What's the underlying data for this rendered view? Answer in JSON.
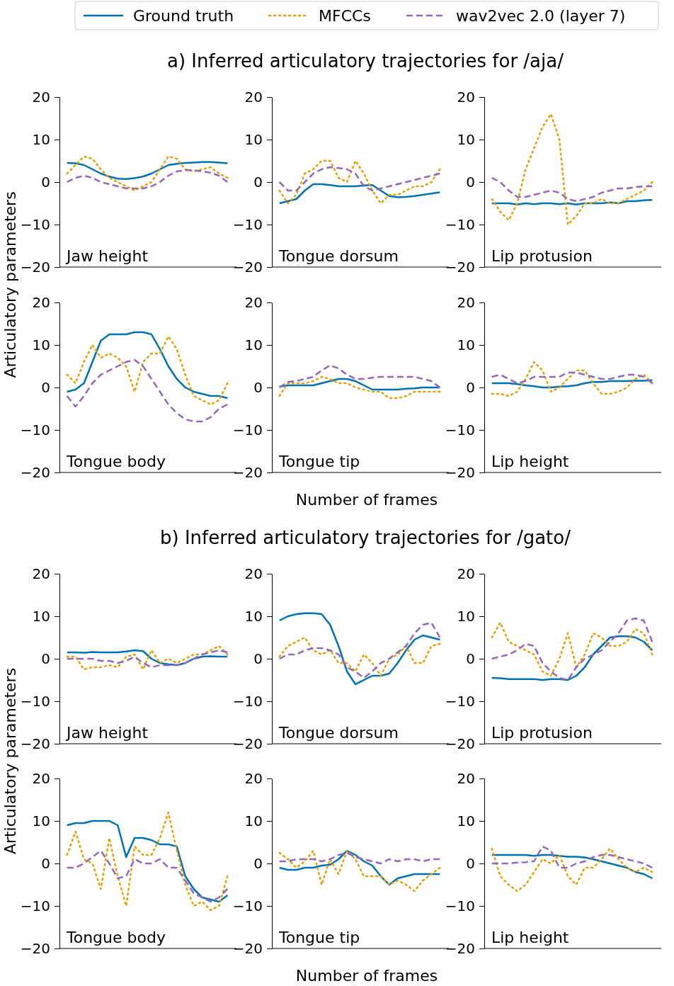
{
  "chart_data": [
    {
      "type": "line",
      "title": "a) Inferred articulatory trajectories for /aja/",
      "ylabel": "Articulatory parameters",
      "annotations": [
        "Jaw height"
      ],
      "legend": "top",
      "tick_labels": "y",
      "ylim": [
        -20,
        20
      ],
      "yticks": [
        -20,
        -10,
        0,
        10,
        20
      ],
      "categories": [
        null,
        null,
        null,
        null,
        null,
        null,
        null,
        null,
        null,
        null,
        null,
        null,
        null,
        null,
        null,
        null,
        null,
        null,
        null,
        null
      ],
      "series": [
        {
          "name": "Ground truth",
          "color": "#0072b2",
          "line_style": "solid",
          "values": [
            4.5,
            4.4,
            4,
            3,
            2,
            1.3,
            0.8,
            0.7,
            0.9,
            1.3,
            2,
            3,
            4,
            4.3,
            4.5,
            4.6,
            4.7,
            4.7,
            4.6,
            4.4
          ]
        },
        {
          "name": "MFCCs",
          "color": "#e69f00",
          "line_style": "dotted",
          "values": [
            2,
            4,
            6,
            5.5,
            3,
            1,
            0,
            -1,
            -2,
            -1,
            0,
            3,
            6,
            5.5,
            3,
            2.5,
            3,
            3.5,
            2,
            1
          ]
        },
        {
          "name": "wav2vec 2.0 (layer 7)",
          "color": "#9467bd",
          "line_style": "dashed",
          "values": [
            0,
            1,
            1.5,
            1,
            0,
            -0.5,
            -1,
            -1.5,
            -1.5,
            -1.5,
            -1,
            0,
            1.5,
            2.5,
            2.8,
            2.8,
            2.5,
            2.2,
            1.5,
            0
          ]
        }
      ]
    },
    {
      "type": "line",
      "annotations": [
        "Tongue dorsum"
      ],
      "tick_labels": "y",
      "ylim": [
        -20,
        20
      ],
      "yticks": [
        -20,
        -10,
        0,
        10,
        20
      ],
      "categories": [
        null,
        null,
        null,
        null,
        null,
        null,
        null,
        null,
        null,
        null,
        null,
        null,
        null,
        null,
        null,
        null,
        null,
        null,
        null,
        null
      ],
      "series": [
        {
          "color": "#0072b2",
          "line_style": "solid",
          "values": [
            -5,
            -4.5,
            -4,
            -2,
            -0.5,
            -0.5,
            -0.7,
            -1,
            -1,
            -1,
            -0.8,
            -0.7,
            -2,
            -3.3,
            -3.6,
            -3.5,
            -3.3,
            -3,
            -2.7,
            -2.4
          ]
        },
        {
          "color": "#e69f00",
          "line_style": "dotted",
          "values": [
            -2,
            -5,
            -3,
            2,
            3,
            5,
            5,
            1,
            0,
            5,
            2,
            -2,
            -5,
            -3,
            -3,
            -2,
            -1,
            -1,
            0,
            3
          ]
        },
        {
          "color": "#9467bd",
          "line_style": "dashed",
          "values": [
            0,
            -2,
            -2,
            0,
            2,
            3,
            3.5,
            3.3,
            3,
            2,
            -1,
            -2,
            -1.5,
            -1,
            -0.5,
            0,
            0.5,
            1,
            1.5,
            2
          ]
        }
      ]
    },
    {
      "type": "line",
      "annotations": [
        "Lip protusion"
      ],
      "tick_labels": "y",
      "ylim": [
        -20,
        20
      ],
      "yticks": [
        -20,
        -10,
        0,
        10,
        20
      ],
      "categories": [
        null,
        null,
        null,
        null,
        null,
        null,
        null,
        null,
        null,
        null,
        null,
        null,
        null,
        null,
        null,
        null,
        null,
        null,
        null,
        null
      ],
      "series": [
        {
          "color": "#0072b2",
          "line_style": "solid",
          "values": [
            -5,
            -5,
            -5,
            -5.3,
            -5,
            -5.2,
            -5,
            -5,
            -5.2,
            -5,
            -5.3,
            -5,
            -5,
            -5,
            -4.8,
            -5,
            -4.5,
            -4.5,
            -4.3,
            -4.2
          ]
        },
        {
          "color": "#e69f00",
          "line_style": "dotted",
          "values": [
            -4,
            -7,
            -9,
            -5,
            3,
            8,
            13,
            16,
            10,
            -10,
            -8,
            -5,
            -5,
            -4,
            -5,
            -5,
            -4,
            -3,
            -2,
            0
          ]
        },
        {
          "color": "#9467bd",
          "line_style": "dashed",
          "values": [
            1,
            0,
            -2,
            -3.5,
            -3.5,
            -3,
            -2.5,
            -2,
            -2.5,
            -4,
            -4.5,
            -4,
            -3.5,
            -2.5,
            -2,
            -1.5,
            -1.5,
            -1.2,
            -1,
            -1
          ]
        }
      ]
    },
    {
      "type": "line",
      "annotations": [
        "Tongue body"
      ],
      "tick_labels": "y",
      "ylim": [
        -20,
        20
      ],
      "yticks": [
        -20,
        -10,
        0,
        10,
        20
      ],
      "categories": [
        null,
        null,
        null,
        null,
        null,
        null,
        null,
        null,
        null,
        null,
        null,
        null,
        null,
        null,
        null,
        null,
        null,
        null,
        null,
        null
      ],
      "series": [
        {
          "color": "#0072b2",
          "line_style": "solid",
          "values": [
            -1,
            -0.5,
            1,
            6,
            11,
            12.5,
            12.5,
            12.5,
            13,
            13,
            12.5,
            9,
            5,
            2,
            0,
            -1,
            -1.5,
            -2,
            -2,
            -2.5
          ]
        },
        {
          "color": "#e69f00",
          "line_style": "dotted",
          "values": [
            3,
            1,
            6,
            10,
            7,
            8,
            7,
            5,
            -1,
            6,
            8,
            8,
            12,
            9,
            3,
            -2,
            -3,
            -4,
            -3,
            1
          ]
        },
        {
          "color": "#9467bd",
          "line_style": "dashed",
          "values": [
            -2,
            -4.5,
            -2,
            1,
            3,
            4,
            5,
            6,
            6.5,
            5,
            2,
            -1,
            -4,
            -6,
            -7.5,
            -8,
            -8,
            -7,
            -5,
            -4
          ]
        }
      ]
    },
    {
      "type": "line",
      "xlabel": "Number of frames",
      "annotations": [
        "Tongue tip"
      ],
      "tick_labels": "y",
      "ylim": [
        -20,
        20
      ],
      "yticks": [
        -20,
        -10,
        0,
        10,
        20
      ],
      "categories": [
        null,
        null,
        null,
        null,
        null,
        null,
        null,
        null,
        null,
        null,
        null,
        null,
        null,
        null,
        null,
        null,
        null,
        null,
        null,
        null
      ],
      "series": [
        {
          "color": "#0072b2",
          "line_style": "solid",
          "values": [
            0.2,
            0.5,
            0.5,
            0.5,
            0.5,
            1,
            1.5,
            2,
            2,
            1.5,
            0.5,
            -0.5,
            -0.5,
            -0.5,
            -0.5,
            -0.3,
            -0.2,
            0,
            0,
            0
          ]
        },
        {
          "color": "#e69f00",
          "line_style": "dotted",
          "values": [
            -2,
            1,
            1,
            1,
            1.5,
            2.5,
            2,
            1,
            1,
            0,
            -0.5,
            -1,
            -1,
            -2.5,
            -2.5,
            -2,
            -1,
            -1,
            -1,
            -1
          ]
        },
        {
          "color": "#9467bd",
          "line_style": "dashed",
          "values": [
            0,
            1.3,
            1.5,
            2,
            2.5,
            4,
            5.2,
            4.5,
            3,
            2,
            2,
            2.3,
            2.5,
            2.5,
            2.5,
            2.5,
            2.5,
            2,
            1.5,
            0
          ]
        }
      ]
    },
    {
      "type": "line",
      "annotations": [
        "Lip height"
      ],
      "tick_labels": "y",
      "ylim": [
        -20,
        20
      ],
      "yticks": [
        -20,
        -10,
        0,
        10,
        20
      ],
      "categories": [
        null,
        null,
        null,
        null,
        null,
        null,
        null,
        null,
        null,
        null,
        null,
        null,
        null,
        null,
        null,
        null,
        null,
        null,
        null,
        null
      ],
      "series": [
        {
          "color": "#0072b2",
          "line_style": "solid",
          "values": [
            1,
            1,
            1,
            0.8,
            0.5,
            0.3,
            0,
            0,
            0.2,
            0.3,
            0.5,
            1,
            1.3,
            1.3,
            1.5,
            1.5,
            1.5,
            1.6,
            1.6,
            1.7
          ]
        },
        {
          "color": "#e69f00",
          "line_style": "dotted",
          "values": [
            -1.5,
            -1.5,
            -2,
            -1,
            2,
            6,
            4,
            -1,
            0,
            2,
            4,
            4,
            1,
            -1.5,
            -1.5,
            -1,
            0,
            2,
            3,
            1
          ]
        },
        {
          "color": "#9467bd",
          "line_style": "dashed",
          "values": [
            2.5,
            3,
            2,
            1,
            1.5,
            2.5,
            2.5,
            2.5,
            2.5,
            3.5,
            3.5,
            3,
            2.5,
            2,
            2,
            2.5,
            3,
            3,
            2.5,
            1
          ]
        }
      ]
    },
    {
      "type": "line",
      "title": "b) Inferred articulatory trajectories for /gato/",
      "ylabel": "Articulatory parameters",
      "annotations": [
        "Jaw height"
      ],
      "tick_labels": "y",
      "ylim": [
        -20,
        20
      ],
      "yticks": [
        -20,
        -10,
        0,
        10,
        20
      ],
      "categories": [
        null,
        null,
        null,
        null,
        null,
        null,
        null,
        null,
        null,
        null,
        null,
        null,
        null,
        null,
        null,
        null,
        null,
        null,
        null,
        null
      ],
      "series": [
        {
          "color": "#0072b2",
          "line_style": "solid",
          "values": [
            1.5,
            1.5,
            1.4,
            1.6,
            1.5,
            1.5,
            1.5,
            1.7,
            2,
            1.8,
            0,
            -1,
            -1.3,
            -1.5,
            -1,
            0,
            0.5,
            0.6,
            0.5,
            0.5
          ]
        },
        {
          "color": "#e69f00",
          "line_style": "dotted",
          "values": [
            0.5,
            0.5,
            -2.5,
            -2,
            -2,
            -1.5,
            -2,
            0.5,
            1,
            -2.5,
            2,
            -1,
            0,
            -1,
            0,
            1,
            1,
            2,
            3,
            1
          ]
        },
        {
          "color": "#9467bd",
          "line_style": "dashed",
          "values": [
            0,
            0,
            0,
            0,
            -0.5,
            -0.5,
            -1,
            -0.5,
            0.5,
            -1,
            -2,
            -1.5,
            -1.5,
            -1.5,
            -1,
            0,
            1,
            1.5,
            2,
            1.5
          ]
        }
      ]
    },
    {
      "type": "line",
      "annotations": [
        "Tongue dorsum"
      ],
      "tick_labels": "y",
      "ylim": [
        -20,
        20
      ],
      "yticks": [
        -20,
        -10,
        0,
        10,
        20
      ],
      "categories": [
        null,
        null,
        null,
        null,
        null,
        null,
        null,
        null,
        null,
        null,
        null,
        null,
        null,
        null,
        null,
        null,
        null,
        null,
        null,
        null
      ],
      "series": [
        {
          "color": "#0072b2",
          "line_style": "solid",
          "values": [
            9,
            10,
            10.5,
            10.7,
            10.7,
            10.5,
            8,
            3,
            -3,
            -6,
            -5,
            -4,
            -4,
            -3.5,
            -1,
            2,
            4.5,
            5.5,
            5,
            4.5
          ]
        },
        {
          "color": "#e69f00",
          "line_style": "dotted",
          "values": [
            0.5,
            3,
            4,
            5,
            2,
            1,
            2,
            -1,
            -1,
            -3,
            1,
            -1,
            -4,
            0,
            1,
            3,
            -1,
            -1,
            3,
            3.5
          ]
        },
        {
          "color": "#9467bd",
          "line_style": "dashed",
          "values": [
            0,
            1,
            1,
            2,
            2.5,
            2.5,
            2,
            1,
            -2,
            -3,
            -4.5,
            -3,
            -1,
            0,
            1.5,
            3,
            6,
            8,
            8.5,
            5
          ]
        }
      ]
    },
    {
      "type": "line",
      "annotations": [
        "Lip protusion"
      ],
      "tick_labels": "y",
      "ylim": [
        -20,
        20
      ],
      "yticks": [
        -20,
        -10,
        0,
        10,
        20
      ],
      "categories": [
        null,
        null,
        null,
        null,
        null,
        null,
        null,
        null,
        null,
        null,
        null,
        null,
        null,
        null,
        null,
        null,
        null,
        null,
        null,
        null
      ],
      "series": [
        {
          "color": "#0072b2",
          "line_style": "solid",
          "values": [
            -4.5,
            -4.6,
            -4.8,
            -4.8,
            -4.8,
            -4.8,
            -5,
            -4.8,
            -4.8,
            -5,
            -4,
            -2,
            1,
            3,
            5,
            5.3,
            5.3,
            5,
            4,
            2
          ]
        },
        {
          "color": "#e69f00",
          "line_style": "dotted",
          "values": [
            5,
            8.5,
            4,
            3,
            2,
            1,
            -3,
            -4,
            0,
            6,
            -2,
            1,
            6,
            5,
            3,
            3,
            4,
            7,
            6,
            1
          ]
        },
        {
          "color": "#9467bd",
          "line_style": "dashed",
          "values": [
            0,
            0.5,
            1,
            2,
            3.5,
            3,
            -1,
            -3,
            -4.5,
            -5,
            -2,
            0,
            1,
            2,
            4,
            6,
            9,
            9.5,
            9,
            4
          ]
        }
      ]
    },
    {
      "type": "line",
      "annotations": [
        "Tongue body"
      ],
      "tick_labels": "y",
      "ylim": [
        -20,
        20
      ],
      "yticks": [
        -20,
        -10,
        0,
        10,
        20
      ],
      "categories": [
        null,
        null,
        null,
        null,
        null,
        null,
        null,
        null,
        null,
        null,
        null,
        null,
        null,
        null,
        null,
        null,
        null,
        null,
        null,
        null
      ],
      "series": [
        {
          "color": "#0072b2",
          "line_style": "solid",
          "values": [
            9,
            9.5,
            9.5,
            10,
            10,
            10,
            9,
            1.5,
            6,
            6,
            5.5,
            4.5,
            4.5,
            4,
            -3,
            -6,
            -8,
            -8.5,
            -9,
            -7.5
          ]
        },
        {
          "color": "#e69f00",
          "line_style": "dotted",
          "values": [
            2,
            7.5,
            1,
            0,
            -6,
            6,
            -3,
            -10,
            4,
            2,
            2,
            6,
            12,
            3,
            -5,
            -10,
            -9,
            -11,
            -10,
            -3
          ]
        },
        {
          "color": "#9467bd",
          "line_style": "dashed",
          "values": [
            -1,
            -1,
            0,
            1.5,
            3,
            0,
            -3.5,
            -3,
            1,
            0,
            0,
            1,
            -1,
            -1,
            -4,
            -7,
            -8,
            -9,
            -8,
            -6
          ]
        }
      ]
    },
    {
      "type": "line",
      "xlabel": "Number of frames",
      "annotations": [
        "Tongue tip"
      ],
      "tick_labels": "y",
      "ylim": [
        -20,
        20
      ],
      "yticks": [
        -20,
        -10,
        0,
        10,
        20
      ],
      "categories": [
        null,
        null,
        null,
        null,
        null,
        null,
        null,
        null,
        null,
        null,
        null,
        null,
        null,
        null,
        null,
        null,
        null,
        null,
        null,
        null
      ],
      "series": [
        {
          "color": "#0072b2",
          "line_style": "solid",
          "values": [
            -1,
            -1.5,
            -1.5,
            -1,
            -1,
            -0.5,
            -0.3,
            1,
            3,
            2,
            0.5,
            -0.5,
            -3,
            -5,
            -3.5,
            -3,
            -2.5,
            -2.5,
            -2.5,
            -2.5
          ]
        },
        {
          "color": "#e69f00",
          "line_style": "dotted",
          "values": [
            2.5,
            1,
            -1,
            0.5,
            3,
            -5,
            1,
            -2.5,
            3,
            1,
            -3,
            -3,
            -3,
            -5,
            -4,
            -5,
            -6.5,
            -4,
            -2.5,
            -1
          ]
        },
        {
          "color": "#9467bd",
          "line_style": "dashed",
          "values": [
            0.5,
            0.5,
            1,
            1,
            1,
            0.5,
            1,
            2,
            2.5,
            1.5,
            1,
            0.5,
            0,
            1,
            0.5,
            1,
            1,
            0.5,
            1,
            1
          ]
        }
      ]
    },
    {
      "type": "line",
      "annotations": [
        "Lip height"
      ],
      "tick_labels": "y",
      "ylim": [
        -20,
        20
      ],
      "yticks": [
        -20,
        -10,
        0,
        10,
        20
      ],
      "categories": [
        null,
        null,
        null,
        null,
        null,
        null,
        null,
        null,
        null,
        null,
        null,
        null,
        null,
        null,
        null,
        null,
        null,
        null,
        null,
        null
      ],
      "series": [
        {
          "color": "#0072b2",
          "line_style": "solid",
          "values": [
            2,
            2,
            2,
            2,
            2,
            1.8,
            2,
            2,
            1.8,
            1.6,
            1.6,
            1.4,
            1,
            0.5,
            0,
            -0.5,
            -1,
            -2,
            -2.5,
            -3.5
          ]
        },
        {
          "color": "#e69f00",
          "line_style": "dotted",
          "values": [
            3.5,
            -3,
            -5,
            -6.5,
            -5,
            -2,
            1,
            0,
            2,
            -3,
            -5,
            -1,
            -1,
            1,
            3.5,
            1,
            -1,
            -2,
            -1,
            -2
          ]
        },
        {
          "color": "#9467bd",
          "line_style": "dashed",
          "values": [
            0,
            0,
            0,
            0.2,
            0.3,
            0.5,
            4,
            3,
            -1,
            -1,
            0,
            0.5,
            1.5,
            2,
            2,
            1.5,
            1,
            0.5,
            0,
            -1
          ]
        }
      ]
    }
  ]
}
